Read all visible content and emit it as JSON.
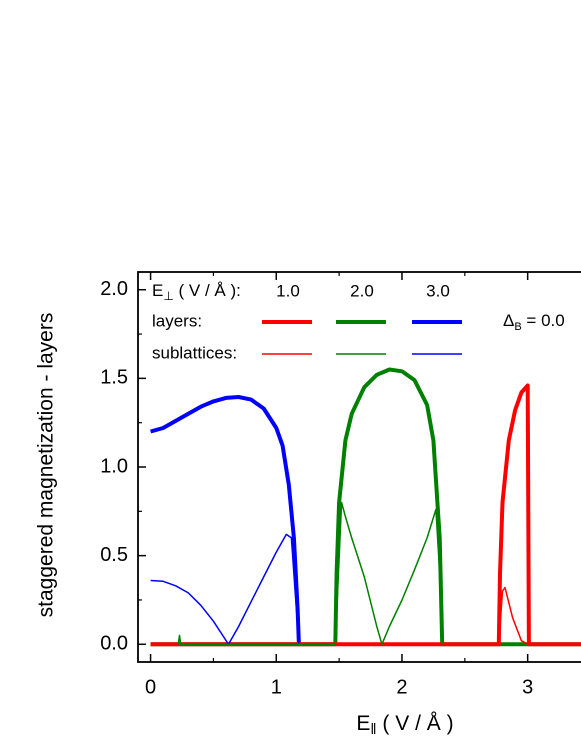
{
  "chart_data": {
    "type": "line",
    "x_label": {
      "main": "E",
      "sub": "‖",
      "rest": " ( V / Å )"
    },
    "y_label": "staggered magnetization - layers",
    "xlim": [
      -0.1,
      3.5
    ],
    "ylim": [
      -0.1,
      2.1
    ],
    "xticks": [
      0,
      1,
      2,
      3
    ],
    "yticks": [
      {
        "value": 0,
        "label": "0.0"
      },
      {
        "value": 0.5,
        "label": "0.5"
      },
      {
        "value": 1,
        "label": "1.0"
      },
      {
        "value": 1.5,
        "label": "1.5"
      },
      {
        "value": 2,
        "label": "2.0"
      }
    ],
    "xminorticks": [
      0.5,
      1.5,
      2.5,
      3.5
    ],
    "yminorticks": [
      0.25,
      0.75,
      1.25,
      1.75
    ],
    "legend": {
      "title": {
        "main": "E",
        "sub": "⊥",
        "rest": " ( V / Å ):"
      },
      "columns": [
        "1.0",
        "2.0",
        "3.0"
      ],
      "rows": [
        "layers:",
        "sublattices:"
      ]
    },
    "annotation": {
      "main": "Δ",
      "sub": "B",
      "rest": " = 0.0"
    },
    "series": [
      {
        "color": "#ff0000",
        "line_width": 4,
        "x": [
          0,
          2.77,
          2.78,
          2.8,
          2.85,
          2.9,
          2.95,
          3.0,
          3.01,
          3.5
        ],
        "values": [
          0,
          0,
          0.4,
          0.8,
          1.15,
          1.32,
          1.42,
          1.46,
          0,
          0
        ]
      },
      {
        "color": "#008000",
        "line_width": 4,
        "x": [
          0,
          1.47,
          1.48,
          1.5,
          1.55,
          1.6,
          1.7,
          1.8,
          1.9,
          2.0,
          2.1,
          2.2,
          2.25,
          2.3,
          2.32,
          3.5
        ],
        "values": [
          0,
          0,
          0.4,
          0.8,
          1.15,
          1.3,
          1.45,
          1.52,
          1.55,
          1.54,
          1.49,
          1.35,
          1.15,
          0.6,
          0,
          0
        ]
      },
      {
        "color": "#0000ff",
        "line_width": 4,
        "x": [
          0,
          0.1,
          0.2,
          0.3,
          0.4,
          0.5,
          0.6,
          0.7,
          0.8,
          0.9,
          1.0,
          1.05,
          1.1,
          1.14,
          1.17,
          1.18
        ],
        "values": [
          1.2,
          1.22,
          1.26,
          1.3,
          1.34,
          1.37,
          1.39,
          1.395,
          1.38,
          1.33,
          1.22,
          1.12,
          0.9,
          0.6,
          0.2,
          0
        ]
      },
      {
        "color": "#ff0000",
        "line_width": 1.5,
        "x": [
          2.77,
          2.8,
          2.82,
          2.88,
          2.95,
          3.0
        ],
        "values": [
          0,
          0.3,
          0.32,
          0.15,
          0.02,
          0
        ]
      },
      {
        "color": "#008000",
        "line_width": 1.5,
        "x": [
          0.22,
          0.23,
          0.24,
          1.47,
          1.52,
          1.55,
          1.6,
          1.7,
          1.8,
          1.84,
          1.9,
          2.0,
          2.1,
          2.2,
          2.27,
          2.3,
          2.32
        ],
        "values": [
          0,
          0.05,
          0,
          0,
          0.8,
          0.72,
          0.6,
          0.38,
          0.1,
          0,
          0.1,
          0.25,
          0.42,
          0.6,
          0.76,
          0.4,
          0
        ]
      },
      {
        "color": "#0000ff",
        "line_width": 1.5,
        "x": [
          0,
          0.1,
          0.2,
          0.3,
          0.4,
          0.5,
          0.62,
          0.7,
          0.8,
          0.9,
          1.0,
          1.08,
          1.12,
          1.15,
          1.18
        ],
        "values": [
          0.36,
          0.355,
          0.33,
          0.29,
          0.22,
          0.13,
          0,
          0.1,
          0.24,
          0.38,
          0.52,
          0.62,
          0.6,
          0.3,
          0
        ]
      }
    ]
  }
}
